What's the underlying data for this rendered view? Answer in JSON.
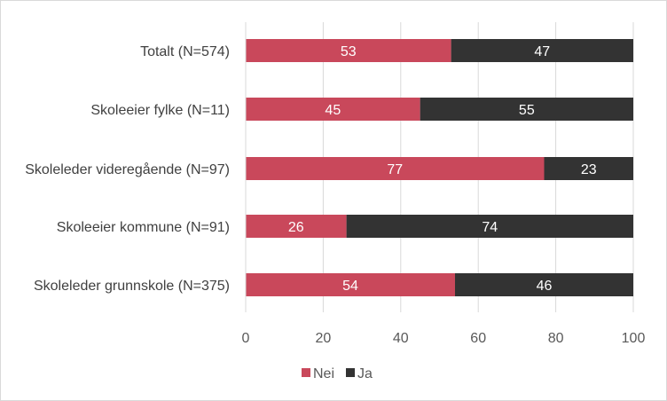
{
  "chart_data": {
    "type": "bar",
    "orientation": "horizontal",
    "stacked": true,
    "categories": [
      "Totalt (N=574)",
      "Skoleeier fylke (N=11)",
      "Skoleleder videregående (N=97)",
      "Skoleeier kommune (N=91)",
      "Skoleleder grunnskole (N=375)"
    ],
    "series": [
      {
        "name": "Nei",
        "values": [
          53,
          45,
          77,
          26,
          54
        ],
        "color": "#c9485b"
      },
      {
        "name": "Ja",
        "values": [
          47,
          55,
          23,
          74,
          46
        ],
        "color": "#333333"
      }
    ],
    "xlim": [
      0,
      100
    ],
    "xticks": [
      "0",
      "20",
      "40",
      "60",
      "80",
      "100"
    ],
    "xlabel": "",
    "ylabel": "",
    "title": "",
    "grid": "vertical",
    "legend_position": "bottom",
    "data_labels": true
  }
}
